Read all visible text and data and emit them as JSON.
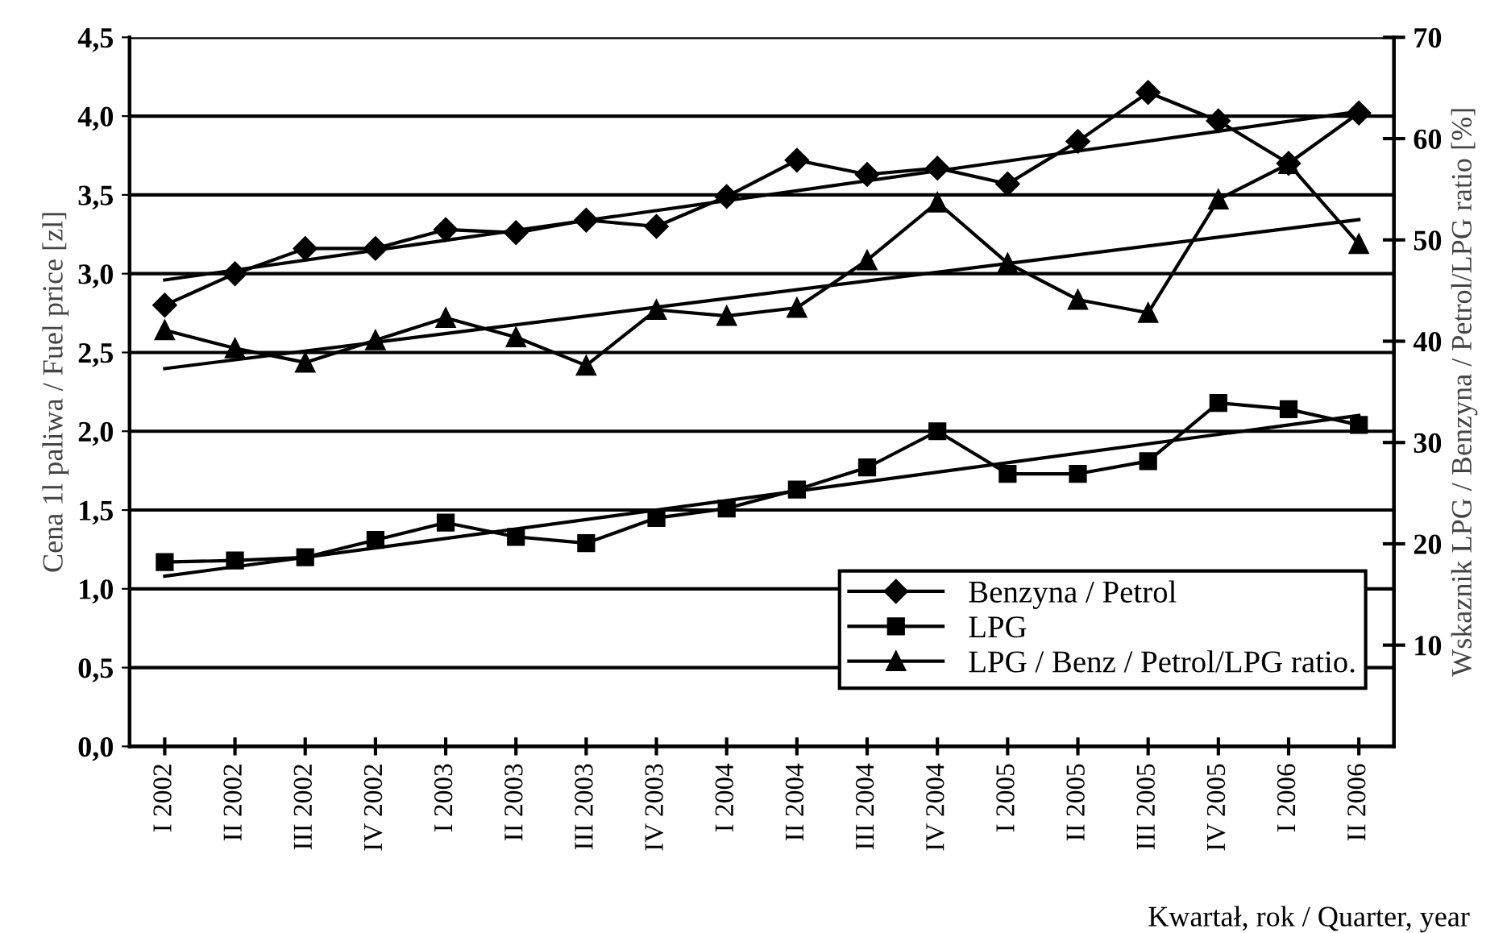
{
  "chart_data": {
    "type": "line",
    "xlabel": "Kwartał, rok / Quarter, year",
    "ylabel": "Cena 1l paliwa / Fuel price [zl]",
    "y2label": "Wskaznik LPG / Benzyna / Petrol/LPG ratio [%]",
    "categories": [
      "I 2002",
      "II 2002",
      "III 2002",
      "IV 2002",
      "I 2003",
      "II 2003",
      "III 2003",
      "IV 2003",
      "I 2004",
      "II 2004",
      "III 2004",
      "IV 2004",
      "I 2005",
      "II 2005",
      "III 2005",
      "IV 2005",
      "I 2006",
      "II 2006"
    ],
    "series": [
      {
        "name": "Benzyna / Petrol",
        "color": "#000000",
        "marker": "diamond",
        "values": [
          2.8,
          3.0,
          3.16,
          3.16,
          3.28,
          3.26,
          3.34,
          3.3,
          3.49,
          3.72,
          3.63,
          3.67,
          3.57,
          3.84,
          4.15,
          3.97,
          3.7,
          4.02
        ]
      },
      {
        "name": "LPG",
        "color": "#000000",
        "marker": "square",
        "values": [
          1.17,
          1.18,
          1.2,
          1.31,
          1.42,
          1.33,
          1.29,
          1.45,
          1.51,
          1.63,
          1.77,
          2.0,
          1.73,
          1.73,
          1.81,
          2.18,
          2.14,
          2.04
        ]
      },
      {
        "name": "LPG / Benz / Petrol/LPG ratio.",
        "color": "#000000",
        "marker": "triangle",
        "axis": "y2",
        "values": [
          41.1,
          39.3,
          37.9,
          40.1,
          42.3,
          40.4,
          37.6,
          43.1,
          42.5,
          43.3,
          48.0,
          53.7,
          47.7,
          44.1,
          42.8,
          54.0,
          57.5,
          49.6
        ]
      },
      {
        "color": "#000000",
        "marker": "none",
        "values": [
          2.96,
          null,
          null,
          null,
          null,
          null,
          null,
          null,
          null,
          null,
          null,
          null,
          null,
          null,
          null,
          null,
          null,
          4.03
        ]
      },
      {
        "color": "#000000",
        "marker": "none",
        "values": [
          1.08,
          null,
          null,
          null,
          null,
          null,
          null,
          null,
          null,
          null,
          null,
          null,
          null,
          null,
          null,
          null,
          null,
          2.1
        ]
      },
      {
        "color": "#000000",
        "marker": "none",
        "axis": "y2",
        "values": [
          37.3,
          null,
          null,
          null,
          null,
          null,
          null,
          null,
          null,
          null,
          null,
          null,
          null,
          null,
          null,
          null,
          null,
          52.0
        ]
      }
    ],
    "ylim": [
      0,
      4.5
    ],
    "yticks": [
      {
        "value": 0,
        "label": "0,0"
      },
      {
        "value": 0.5,
        "label": "0,5"
      },
      {
        "value": 1,
        "label": "1,0"
      },
      {
        "value": 1.5,
        "label": "1,5"
      },
      {
        "value": 2,
        "label": "2,0"
      },
      {
        "value": 2.5,
        "label": "2,5"
      },
      {
        "value": 3,
        "label": "3,0"
      },
      {
        "value": 3.5,
        "label": "3,5"
      },
      {
        "value": 4,
        "label": "4,0"
      },
      {
        "value": 4.5,
        "label": "4,5"
      }
    ],
    "y2lim": [
      0,
      70
    ],
    "y2ticks": [
      10,
      20,
      30,
      40,
      50,
      60,
      70
    ],
    "grid": "y",
    "legend": "bottom right",
    "line_style": "solid"
  }
}
